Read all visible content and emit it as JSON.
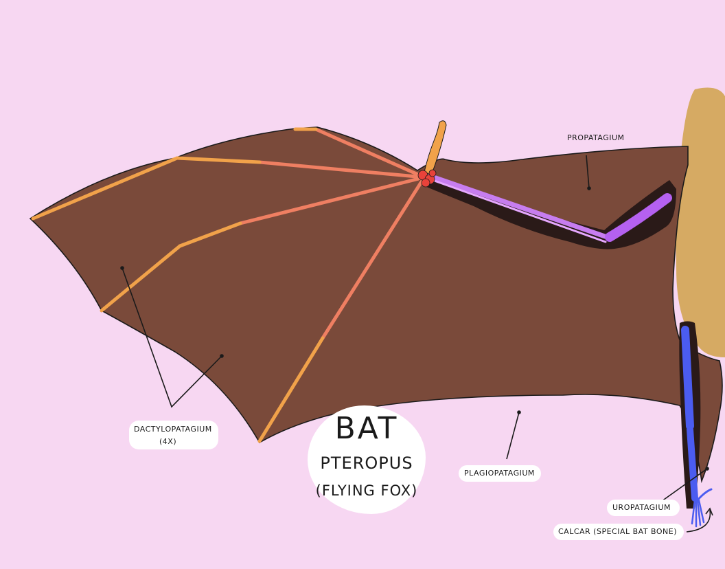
{
  "title": {
    "main": "BAT",
    "genus": "PTEROPUS",
    "common": "(FLYING FOX)"
  },
  "labels": {
    "propatagium": "PROPATAGIUM",
    "dactylopatagium_line1": "DACTYLOPATAGIUM",
    "dactylopatagium_line2": "(4X)",
    "plagiopatagium": "PLAGIOPATAGIUM",
    "uropatagium": "UROPATAGIUM",
    "calcar": "CALCAR (SPECIAL BAT BONE)"
  },
  "colors": {
    "background": "#f7d7f2",
    "membrane": "#7a4a3a",
    "body": "#d6aa63",
    "arm_bones": "#c77df0",
    "finger_bones": "#ef7f62",
    "finger_tips": "#f1a24a",
    "carpals": "#e8423a",
    "leg_bones": "#4b5cf0",
    "outline": "#1a1a1a"
  }
}
